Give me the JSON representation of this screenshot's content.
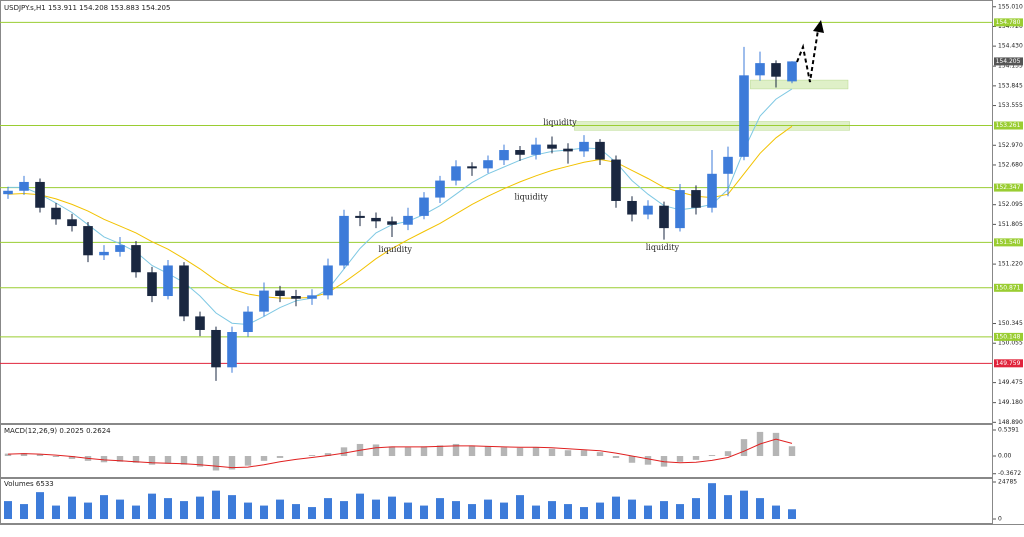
{
  "chart_data": [
    {
      "type": "candlestick",
      "title": "USDJPY.s,H1 153.911 154.208 153.883 154.205",
      "xlim": [
        -0.5,
        61.5
      ],
      "ylim": [
        148.88,
        155.08
      ],
      "yticks": [
        {
          "value": 155.01,
          "label": "155.010"
        },
        {
          "value": 154.72,
          "label": "154.720"
        },
        {
          "value": 154.43,
          "label": "154.430"
        },
        154.135,
        153.845,
        153.555,
        {
          "value": 152.97,
          "label": "152.970"
        },
        {
          "value": 152.68,
          "label": "152.680"
        },
        152.095,
        151.805,
        {
          "value": 151.22,
          "label": "151.220"
        },
        150.345,
        150.055,
        149.475,
        {
          "value": 149.18,
          "label": "149.180"
        },
        {
          "value": 148.89,
          "label": "148.890"
        }
      ],
      "up_color": "#3d7bd9",
      "down_color": "#1a2740",
      "open": [
        152.25,
        152.3,
        152.43,
        152.05,
        151.88,
        151.78,
        151.35,
        151.4,
        151.5,
        151.1,
        150.75,
        151.2,
        150.45,
        150.25,
        149.7,
        150.22,
        150.52,
        150.83,
        150.75,
        150.71,
        150.76,
        151.2,
        151.93,
        151.9,
        151.85,
        151.8,
        151.93,
        152.2,
        152.45,
        152.66,
        152.63,
        152.75,
        152.9,
        152.83,
        152.98,
        152.92,
        152.88,
        153.02,
        152.76,
        152.15,
        151.95,
        152.08,
        151.75,
        152.31,
        152.05,
        152.55,
        152.8,
        154.0,
        154.18,
        153.911
      ],
      "high": [
        152.36,
        152.52,
        152.48,
        152.12,
        151.96,
        151.84,
        151.5,
        151.62,
        151.56,
        151.18,
        151.28,
        151.25,
        150.52,
        150.3,
        150.3,
        150.6,
        150.95,
        150.9,
        150.84,
        150.85,
        151.3,
        152.02,
        152.0,
        151.98,
        151.92,
        152.05,
        152.28,
        152.52,
        152.75,
        152.72,
        152.82,
        152.98,
        152.96,
        153.08,
        153.1,
        153.0,
        153.12,
        153.06,
        152.82,
        152.22,
        152.16,
        152.14,
        152.4,
        152.38,
        152.9,
        152.95,
        154.42,
        154.35,
        154.22,
        154.208
      ],
      "low": [
        152.18,
        152.24,
        151.98,
        151.8,
        151.7,
        151.25,
        151.28,
        151.33,
        151.02,
        150.66,
        150.7,
        150.38,
        150.16,
        149.5,
        149.62,
        150.15,
        150.45,
        150.66,
        150.6,
        150.62,
        150.7,
        151.15,
        151.78,
        151.75,
        151.62,
        151.72,
        151.88,
        152.12,
        152.38,
        152.52,
        152.56,
        152.68,
        152.74,
        152.76,
        152.85,
        152.7,
        152.8,
        152.68,
        152.05,
        151.85,
        151.88,
        151.58,
        151.7,
        151.95,
        151.98,
        152.22,
        152.75,
        153.92,
        153.82,
        153.883
      ],
      "close": [
        152.3,
        152.43,
        152.05,
        151.88,
        151.78,
        151.35,
        151.4,
        151.5,
        151.1,
        150.75,
        151.2,
        150.45,
        150.25,
        149.7,
        150.22,
        150.52,
        150.83,
        150.75,
        150.71,
        150.76,
        151.2,
        151.93,
        151.9,
        151.85,
        151.8,
        151.93,
        152.2,
        152.45,
        152.66,
        152.63,
        152.75,
        152.9,
        152.83,
        152.98,
        152.92,
        152.88,
        153.02,
        152.76,
        152.15,
        151.95,
        152.08,
        151.75,
        152.31,
        152.05,
        152.55,
        152.8,
        154.0,
        154.18,
        153.98,
        154.205
      ],
      "ma": [
        {
          "color": "#7ec8e3",
          "values": [
            152.35,
            152.35,
            152.25,
            152.12,
            151.98,
            151.8,
            151.62,
            151.52,
            151.4,
            151.2,
            151.08,
            150.95,
            150.75,
            150.5,
            150.35,
            150.33,
            150.45,
            150.58,
            150.68,
            150.72,
            150.85,
            151.15,
            151.45,
            151.68,
            151.8,
            151.85,
            151.95,
            152.08,
            152.25,
            152.42,
            152.55,
            152.65,
            152.75,
            152.83,
            152.88,
            152.9,
            152.93,
            152.92,
            152.72,
            152.45,
            152.25,
            152.08,
            152.02,
            152.05,
            152.1,
            152.32,
            152.9,
            153.4,
            153.65,
            153.8
          ]
        },
        {
          "color": "#f2c200",
          "values": [
            152.25,
            152.26,
            152.24,
            152.18,
            152.1,
            152.0,
            151.88,
            151.78,
            151.68,
            151.55,
            151.44,
            151.3,
            151.15,
            150.98,
            150.85,
            150.78,
            150.74,
            150.72,
            150.72,
            150.73,
            150.8,
            150.95,
            151.12,
            151.3,
            151.45,
            151.58,
            151.7,
            151.82,
            151.96,
            152.1,
            152.22,
            152.33,
            152.43,
            152.52,
            152.6,
            152.66,
            152.72,
            152.76,
            152.72,
            152.6,
            152.48,
            152.35,
            152.28,
            152.22,
            152.2,
            152.25,
            152.55,
            152.85,
            153.08,
            153.25
          ]
        }
      ],
      "levels": [
        {
          "value": 154.78,
          "label": "154.780",
          "color": "#9acd32"
        },
        {
          "value": 153.261,
          "label": "153.261",
          "color": "#9acd32"
        },
        {
          "value": 152.347,
          "label": "152.347",
          "color": "#9acd32"
        },
        {
          "value": 151.54,
          "label": "151.540",
          "color": "#9acd32"
        },
        {
          "value": 150.871,
          "label": "150.871",
          "color": "#9acd32"
        },
        {
          "value": 150.148,
          "label": "150.148",
          "color": "#9acd32"
        },
        {
          "value": 149.759,
          "label": "149.759",
          "color": "#e0243c"
        }
      ],
      "zones": [
        {
          "x": [
            46.4,
            52.5
          ],
          "y": [
            153.8,
            153.93
          ],
          "color": "#dff0c8"
        },
        {
          "x": [
            35.4,
            52.6
          ],
          "y": [
            153.19,
            153.32
          ],
          "color": "#dff0c8"
        }
      ],
      "annotations": [
        {
          "text": "liquidity",
          "x": 34.5,
          "y": 153.3
        },
        {
          "text": "liquidity",
          "x": 32.7,
          "y": 152.2
        },
        {
          "text": "liquidity",
          "x": 24.2,
          "y": 151.43
        },
        {
          "text": "liquidity",
          "x": 40.9,
          "y": 151.46
        }
      ],
      "last_price": {
        "value": 154.205,
        "label": "154.205",
        "color": "#555555"
      }
    },
    {
      "type": "macd",
      "title": "MACD(12,26,9) 0.2025 0.2624",
      "ylim": [
        -0.435,
        0.643
      ],
      "yticks": [
        0.5391,
        {
          "value": 0,
          "label": "0.00"
        },
        -0.3672
      ],
      "color": "#b5b5b5",
      "values": [
        0.05,
        0.06,
        0.03,
        -0.02,
        -0.06,
        -0.1,
        -0.13,
        -0.12,
        -0.14,
        -0.18,
        -0.16,
        -0.18,
        -0.22,
        -0.3,
        -0.28,
        -0.2,
        -0.1,
        -0.04,
        0.0,
        0.02,
        0.06,
        0.18,
        0.25,
        0.24,
        0.2,
        0.18,
        0.2,
        0.22,
        0.25,
        0.22,
        0.2,
        0.18,
        0.17,
        0.18,
        0.15,
        0.12,
        0.12,
        0.08,
        -0.04,
        -0.14,
        -0.18,
        -0.22,
        -0.12,
        -0.08,
        0.02,
        0.1,
        0.35,
        0.5,
        0.48,
        0.2025
      ],
      "signal": {
        "color": "#e02020",
        "values": [
          0.04,
          0.05,
          0.04,
          0.02,
          -0.01,
          -0.05,
          -0.08,
          -0.1,
          -0.12,
          -0.14,
          -0.15,
          -0.16,
          -0.18,
          -0.21,
          -0.24,
          -0.23,
          -0.18,
          -0.12,
          -0.07,
          -0.03,
          0.01,
          0.06,
          0.12,
          0.17,
          0.19,
          0.19,
          0.19,
          0.2,
          0.21,
          0.21,
          0.2,
          0.19,
          0.18,
          0.18,
          0.17,
          0.15,
          0.13,
          0.11,
          0.06,
          0.0,
          -0.06,
          -0.12,
          -0.14,
          -0.13,
          -0.09,
          -0.03,
          0.1,
          0.25,
          0.35,
          0.2624
        ]
      }
    },
    {
      "type": "bar",
      "title": "Volumes 6533",
      "ylim": [
        -2000,
        26800
      ],
      "yticks": [
        24785,
        0
      ],
      "color": "#3d7bd9",
      "values": [
        12000,
        10000,
        18000,
        9000,
        15000,
        11000,
        16000,
        13000,
        9000,
        17000,
        14000,
        12000,
        15000,
        19000,
        16000,
        11000,
        9000,
        13000,
        10000,
        8000,
        14000,
        12000,
        17000,
        13000,
        15000,
        11000,
        9000,
        14000,
        12000,
        10000,
        13000,
        11000,
        16000,
        9000,
        12000,
        10000,
        8000,
        11000,
        15000,
        13000,
        9000,
        12000,
        10000,
        14000,
        24000,
        16000,
        19000,
        14000,
        9000,
        6533
      ]
    }
  ]
}
